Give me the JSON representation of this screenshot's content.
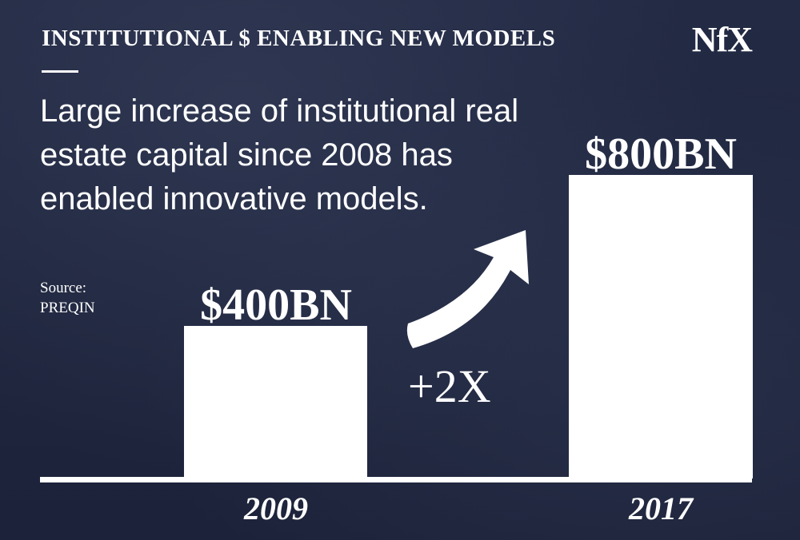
{
  "header": {
    "title": "INSTITUTIONAL $ ENABLING NEW MODELS",
    "logo": "NfX"
  },
  "subtitle": "Large increase of institutional real estate capital since 2008 has enabled innovative models.",
  "source": {
    "label": "Source:",
    "name": "PREQIN"
  },
  "chart_data": {
    "type": "bar",
    "categories": [
      "2009",
      "2017"
    ],
    "values": [
      400,
      800
    ],
    "value_labels": [
      "$400BN",
      "$800BN"
    ],
    "ylim": [
      0,
      800
    ],
    "unit": "BN USD",
    "annotation": "+2X",
    "grid": false,
    "legend": false,
    "colors": {
      "bar": "#ffffff",
      "background": "#1f2640"
    }
  }
}
